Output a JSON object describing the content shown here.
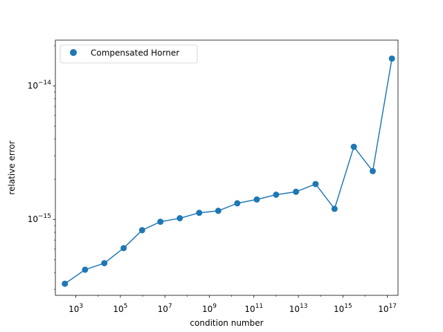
{
  "chart_data": {
    "type": "scatter",
    "title": "",
    "xlabel": "condition number",
    "ylabel": "relative error",
    "xscale": "log",
    "yscale": "log",
    "xlim": [
      120.0,
      3e+17
    ],
    "ylim": [
      2.7e-16,
      2.2e-14
    ],
    "legend": {
      "location": "upper left",
      "entries": [
        "Compensated Horner"
      ]
    },
    "grid": false,
    "color": "#1f77b4",
    "x_ticks": [
      {
        "value": 1000.0,
        "base": "10",
        "exp": "3"
      },
      {
        "value": 100000.0,
        "base": "10",
        "exp": "5"
      },
      {
        "value": 10000000.0,
        "base": "10",
        "exp": "7"
      },
      {
        "value": 1000000000.0,
        "base": "10",
        "exp": "9"
      },
      {
        "value": 100000000000.0,
        "base": "10",
        "exp": "11"
      },
      {
        "value": 10000000000000.0,
        "base": "10",
        "exp": "13"
      },
      {
        "value": 1000000000000000.0,
        "base": "10",
        "exp": "15"
      },
      {
        "value": 1e+17,
        "base": "10",
        "exp": "17"
      }
    ],
    "y_ticks": [
      {
        "value": 1e-15,
        "base": "10",
        "exp": "−15"
      },
      {
        "value": 1e-14,
        "base": "10",
        "exp": "−14"
      }
    ],
    "series": [
      {
        "name": "Compensated Horner",
        "style": "line+markers",
        "x": [
          320.0,
          2600.0,
          19000.0,
          140000.0,
          950000.0,
          6300000.0,
          47000000.0,
          350000000.0,
          2500000000.0,
          18000000000.0,
          135000000000.0,
          1000000000000.0,
          7800000000000.0,
          59000000000000.0,
          420000000000000.0,
          3100000000000000.0,
          2.2e+16,
          1.6e+17
        ],
        "y": [
          3.3e-16,
          4.2e-16,
          4.7e-16,
          6.1e-16,
          8.3e-16,
          9.6e-16,
          1.02e-15,
          1.12e-15,
          1.16e-15,
          1.32e-15,
          1.41e-15,
          1.53e-15,
          1.61e-15,
          1.84e-15,
          1.2e-15,
          3.5e-15,
          2.3e-15,
          1.6e-14
        ]
      }
    ]
  }
}
